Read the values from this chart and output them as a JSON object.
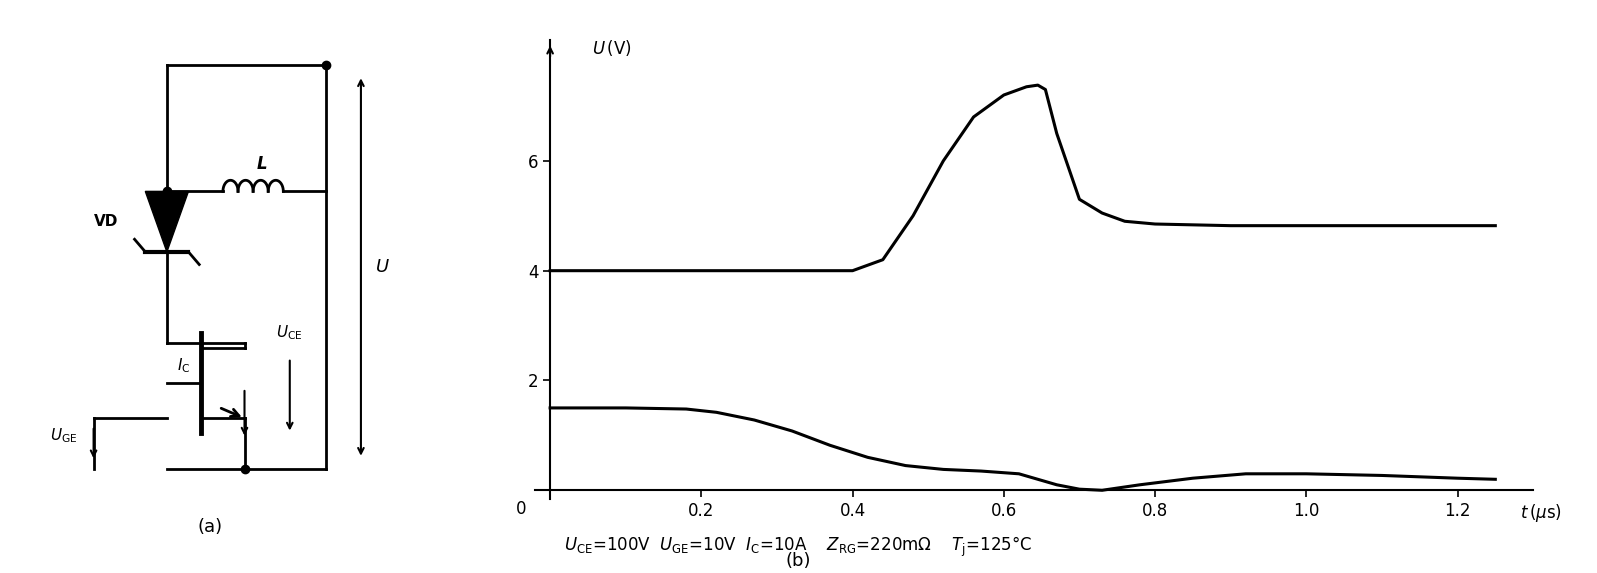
{
  "xlim": [
    -0.02,
    1.3
  ],
  "ylim": [
    -0.15,
    8.2
  ],
  "xticks": [
    0.2,
    0.4,
    0.6,
    0.8,
    1.0,
    1.2
  ],
  "yticks": [
    2,
    4,
    6
  ],
  "label_a": "(a)",
  "label_b": "(b)",
  "bg_color": "#ffffff",
  "line_color": "#000000",
  "linewidth": 2.2,
  "t_ic": [
    0.0,
    0.1,
    0.18,
    0.22,
    0.27,
    0.32,
    0.37,
    0.42,
    0.47,
    0.52,
    0.57,
    0.62,
    0.67,
    0.7,
    0.73,
    0.78,
    0.85,
    0.92,
    1.0,
    1.1,
    1.2,
    1.25
  ],
  "v_ic": [
    1.5,
    1.5,
    1.48,
    1.42,
    1.28,
    1.08,
    0.82,
    0.6,
    0.45,
    0.38,
    0.35,
    0.3,
    0.1,
    0.02,
    0.0,
    0.1,
    0.22,
    0.3,
    0.3,
    0.27,
    0.22,
    0.2
  ],
  "t_uce": [
    0.0,
    0.1,
    0.2,
    0.3,
    0.4,
    0.44,
    0.48,
    0.52,
    0.56,
    0.6,
    0.63,
    0.645,
    0.655,
    0.67,
    0.7,
    0.73,
    0.76,
    0.8,
    0.9,
    1.0,
    1.1,
    1.2,
    1.25
  ],
  "v_uce": [
    4.0,
    4.0,
    4.0,
    4.0,
    4.0,
    4.2,
    5.0,
    6.0,
    6.8,
    7.2,
    7.35,
    7.38,
    7.3,
    6.5,
    5.3,
    5.05,
    4.9,
    4.85,
    4.82,
    4.82,
    4.82,
    4.82,
    4.82
  ]
}
